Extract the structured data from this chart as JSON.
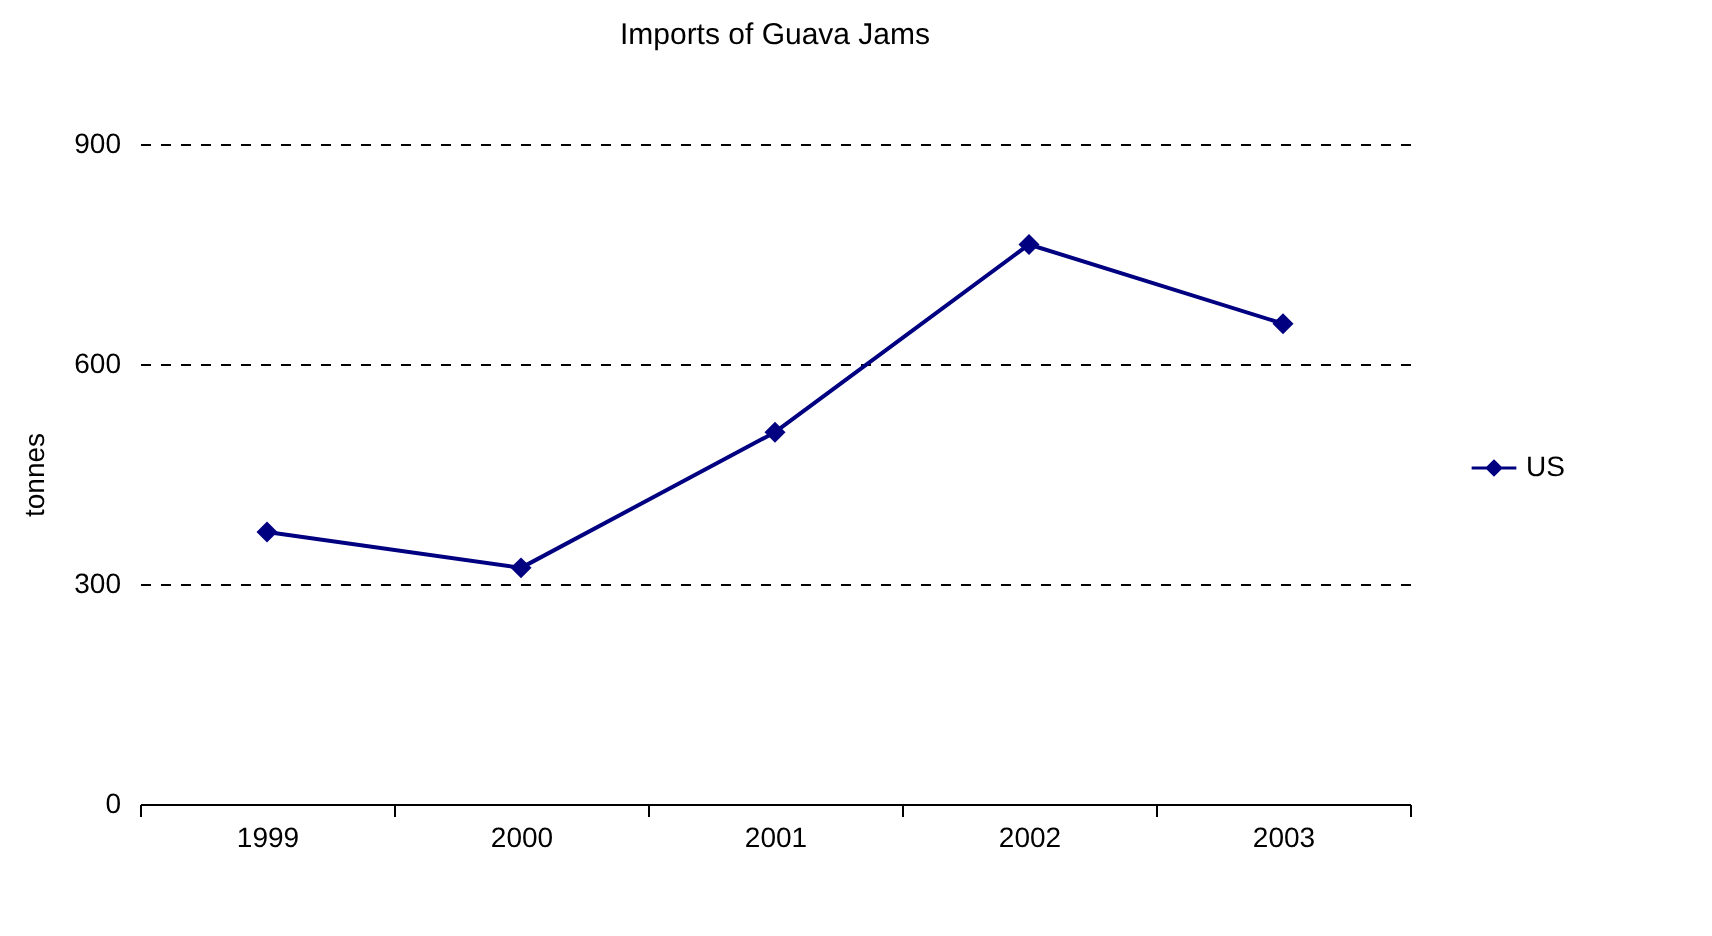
{
  "chart_data": {
    "type": "line",
    "title": "Imports of Guava Jams",
    "ylabel": "tonnes",
    "categories": [
      "1999",
      "2000",
      "2001",
      "2002",
      "2003"
    ],
    "series": [
      {
        "name": "US",
        "color": "#000080",
        "values": [
          371,
          322,
          507,
          763,
          655
        ]
      }
    ],
    "ylim": [
      0,
      900
    ],
    "yticks": [
      0,
      300,
      600,
      900
    ],
    "grid": "y",
    "legend": "right",
    "marker": "diamond",
    "line_style": "solid"
  }
}
